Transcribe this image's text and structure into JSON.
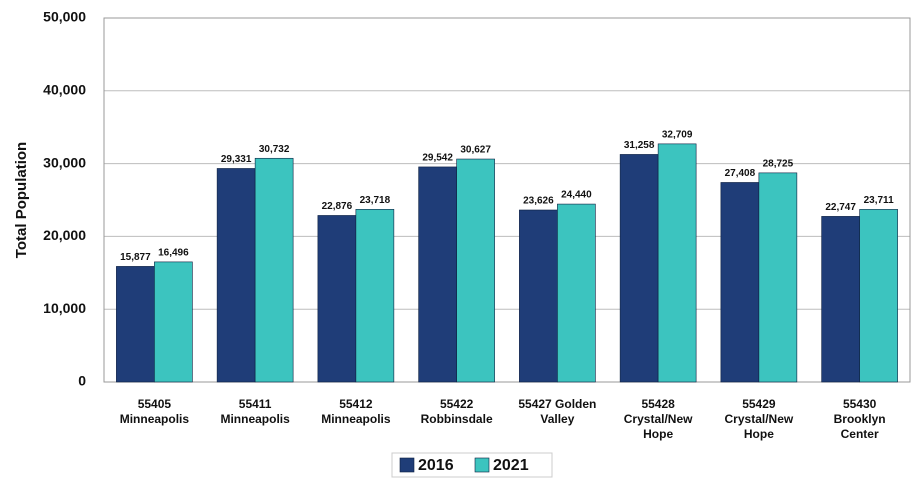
{
  "chart_data": {
    "type": "bar",
    "ylabel": "Total Population",
    "categories": [
      "55405\nMinneapolis",
      "55411\nMinneapolis",
      "55412\nMinneapolis",
      "55422\nRobbinsdale",
      "55427 Golden\nValley",
      "55428\nCrystal/New\nHope",
      "55429\nCrystal/New\nHope",
      "55430\nBrooklyn\nCenter"
    ],
    "series": [
      {
        "name": "2016",
        "color": "#1f3d78",
        "values": [
          15877,
          29331,
          22876,
          29542,
          23626,
          31258,
          27408,
          22747
        ],
        "value_labels": [
          "15,877",
          "29,331",
          "22,876",
          "29,542",
          "23,626",
          "31,258",
          "27,408",
          "22,747"
        ]
      },
      {
        "name": "2021",
        "color": "#3cc4bf",
        "values": [
          16496,
          30732,
          23718,
          30627,
          24440,
          32709,
          28725,
          23711
        ],
        "value_labels": [
          "16,496",
          "30,732",
          "23,718",
          "30,627",
          "24,440",
          "32,709",
          "28,725",
          "23,711"
        ]
      }
    ],
    "ylim": [
      0,
      50000
    ],
    "yticks": [
      {
        "value": 0,
        "label": "0"
      },
      {
        "value": 10000,
        "label": "10,000"
      },
      {
        "value": 20000,
        "label": "20,000"
      },
      {
        "value": 30000,
        "label": "30,000"
      },
      {
        "value": 40000,
        "label": "40,000"
      },
      {
        "value": 50000,
        "label": "50,000"
      }
    ],
    "grid": true,
    "legend": "bottom"
  }
}
